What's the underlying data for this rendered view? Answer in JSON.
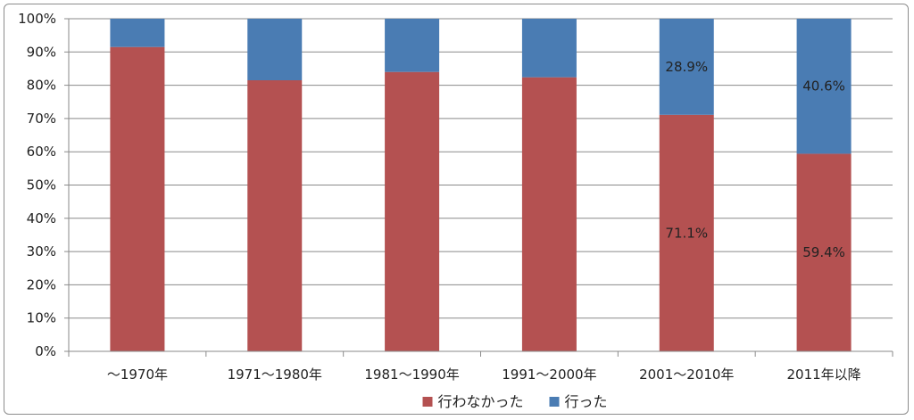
{
  "chart_data": {
    "type": "bar",
    "stacked": true,
    "percent_stacked": true,
    "categories": [
      "～1970年",
      "1971～1980年",
      "1981～1990年",
      "1991～2000年",
      "2001～2010年",
      "2011年以降"
    ],
    "series": [
      {
        "name": "行わなかった",
        "color": "#b45151",
        "values": [
          91.5,
          81.5,
          84.0,
          82.4,
          71.1,
          59.4
        ]
      },
      {
        "name": "行った",
        "color": "#4a7cb3",
        "values": [
          8.5,
          18.5,
          16.0,
          17.6,
          28.9,
          40.6
        ]
      }
    ],
    "data_labels": [
      {
        "series": 0,
        "category": 4,
        "text": "71.1%"
      },
      {
        "series": 1,
        "category": 4,
        "text": "28.9%"
      },
      {
        "series": 0,
        "category": 5,
        "text": "59.4%"
      },
      {
        "series": 1,
        "category": 5,
        "text": "40.6%"
      }
    ],
    "y_ticks": [
      "0%",
      "10%",
      "20%",
      "30%",
      "40%",
      "50%",
      "60%",
      "70%",
      "80%",
      "90%",
      "100%"
    ],
    "ylim": [
      0,
      100
    ],
    "grid": true,
    "legend_position": "bottom"
  }
}
